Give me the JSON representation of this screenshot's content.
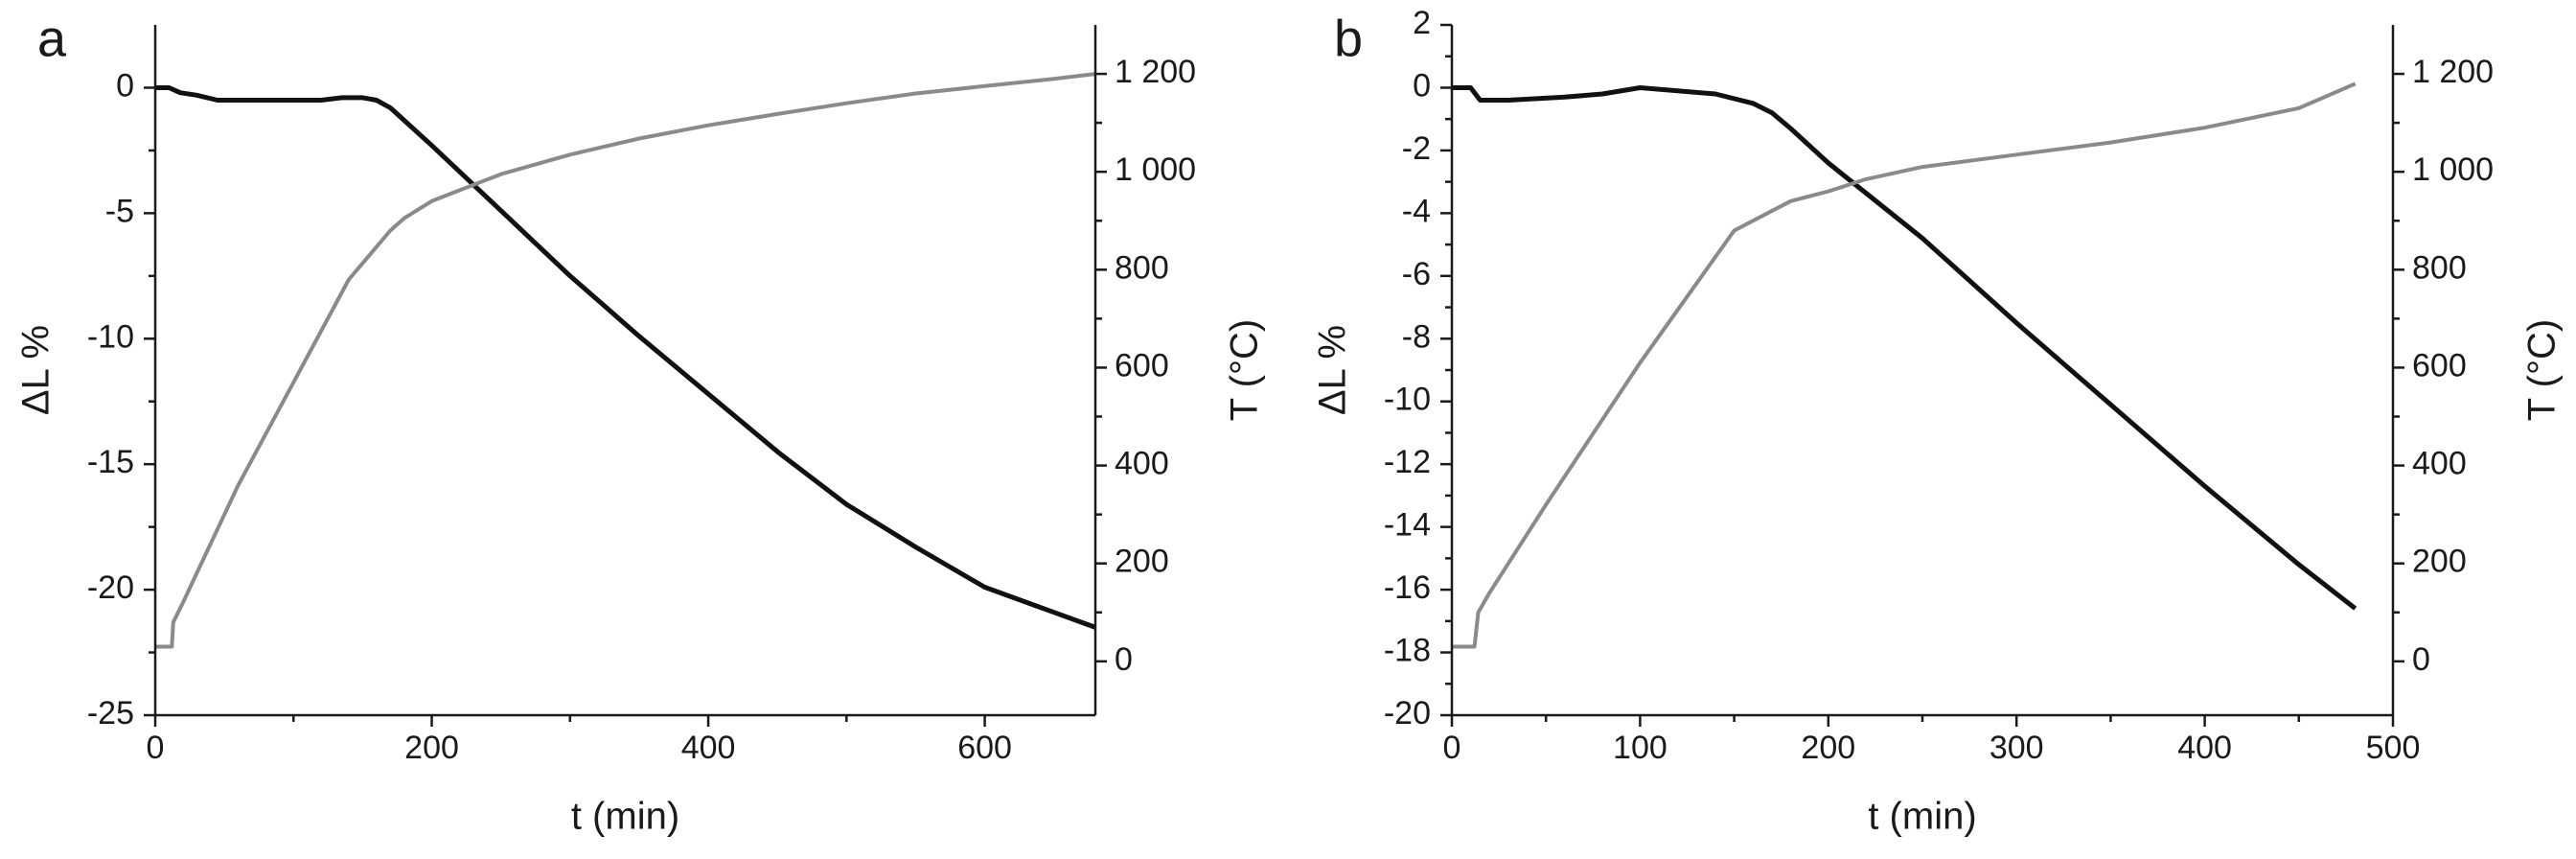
{
  "chart_data": [
    {
      "type": "line",
      "panel_label": "a",
      "xlabel": "t (min)",
      "ylabel_left": "ΔL %",
      "ylabel_right": "T (°C)",
      "xlim": [
        0,
        680
      ],
      "ylim_left": [
        -25,
        2.5
      ],
      "ylim_right": [
        -110,
        1300
      ],
      "x_ticks": [
        "0",
        "200",
        "400",
        "600"
      ],
      "x_tick_values": [
        0,
        200,
        400,
        600
      ],
      "y_left_ticks": [
        "0",
        "-5",
        "-10",
        "-15",
        "-20",
        "-25"
      ],
      "y_left_tick_values": [
        0,
        -5,
        -10,
        -15,
        -20,
        -25
      ],
      "y_right_ticks": [
        "0",
        "200",
        "400",
        "600",
        "800",
        "1 000",
        "1 200"
      ],
      "y_right_tick_values": [
        0,
        200,
        400,
        600,
        800,
        1000,
        1200
      ],
      "grid": false,
      "series": [
        {
          "axis": "left",
          "color": "#111111",
          "x": [
            0,
            10,
            18,
            30,
            45,
            60,
            90,
            120,
            135,
            150,
            160,
            170,
            180,
            200,
            250,
            300,
            350,
            400,
            450,
            500,
            550,
            600,
            650,
            680
          ],
          "y": [
            0,
            0,
            -0.2,
            -0.3,
            -0.5,
            -0.5,
            -0.5,
            -0.5,
            -0.4,
            -0.4,
            -0.5,
            -0.8,
            -1.3,
            -2.3,
            -4.9,
            -7.5,
            -9.9,
            -12.2,
            -14.5,
            -16.6,
            -18.3,
            -19.9,
            -20.9,
            -21.5
          ]
        },
        {
          "axis": "right",
          "color": "#8a8a8a",
          "x": [
            0,
            12,
            13,
            20,
            30,
            60,
            100,
            140,
            170,
            180,
            200,
            250,
            300,
            350,
            400,
            450,
            500,
            550,
            600,
            650,
            680
          ],
          "y": [
            30,
            30,
            80,
            120,
            180,
            360,
            570,
            780,
            880,
            905,
            940,
            995,
            1035,
            1068,
            1095,
            1118,
            1140,
            1160,
            1175,
            1190,
            1200
          ]
        }
      ]
    },
    {
      "type": "line",
      "panel_label": "b",
      "xlabel": "t (min)",
      "ylabel_left": "ΔL %",
      "ylabel_right": "T (°C)",
      "xlim": [
        0,
        500
      ],
      "ylim_left": [
        -20,
        2
      ],
      "ylim_right": [
        -110,
        1300
      ],
      "x_ticks": [
        "0",
        "100",
        "200",
        "300",
        "400",
        "500"
      ],
      "x_tick_values": [
        0,
        100,
        200,
        300,
        400,
        500
      ],
      "y_left_ticks": [
        "2",
        "0",
        "-2",
        "-4",
        "-6",
        "-8",
        "-10",
        "-12",
        "-14",
        "-16",
        "-18",
        "-20"
      ],
      "y_left_tick_values": [
        2,
        0,
        -2,
        -4,
        -6,
        -8,
        -10,
        -12,
        -14,
        -16,
        -18,
        -20
      ],
      "y_right_ticks": [
        "0",
        "200",
        "400",
        "600",
        "800",
        "1 000",
        "1 200"
      ],
      "y_right_tick_values": [
        0,
        200,
        400,
        600,
        800,
        1000,
        1200
      ],
      "grid": false,
      "series": [
        {
          "axis": "left",
          "color": "#111111",
          "x": [
            0,
            10,
            15,
            30,
            60,
            80,
            100,
            120,
            140,
            160,
            170,
            180,
            200,
            250,
            300,
            350,
            400,
            450,
            480
          ],
          "y": [
            0,
            0,
            -0.4,
            -0.4,
            -0.3,
            -0.2,
            0,
            -0.1,
            -0.2,
            -0.5,
            -0.8,
            -1.3,
            -2.4,
            -4.8,
            -7.5,
            -10.1,
            -12.7,
            -15.2,
            -16.6
          ]
        },
        {
          "axis": "right",
          "color": "#8a8a8a",
          "x": [
            0,
            12,
            14,
            20,
            50,
            100,
            150,
            180,
            200,
            220,
            250,
            300,
            350,
            400,
            450,
            480
          ],
          "y": [
            30,
            30,
            100,
            140,
            320,
            610,
            880,
            940,
            960,
            985,
            1010,
            1035,
            1060,
            1090,
            1130,
            1180
          ]
        }
      ]
    }
  ]
}
